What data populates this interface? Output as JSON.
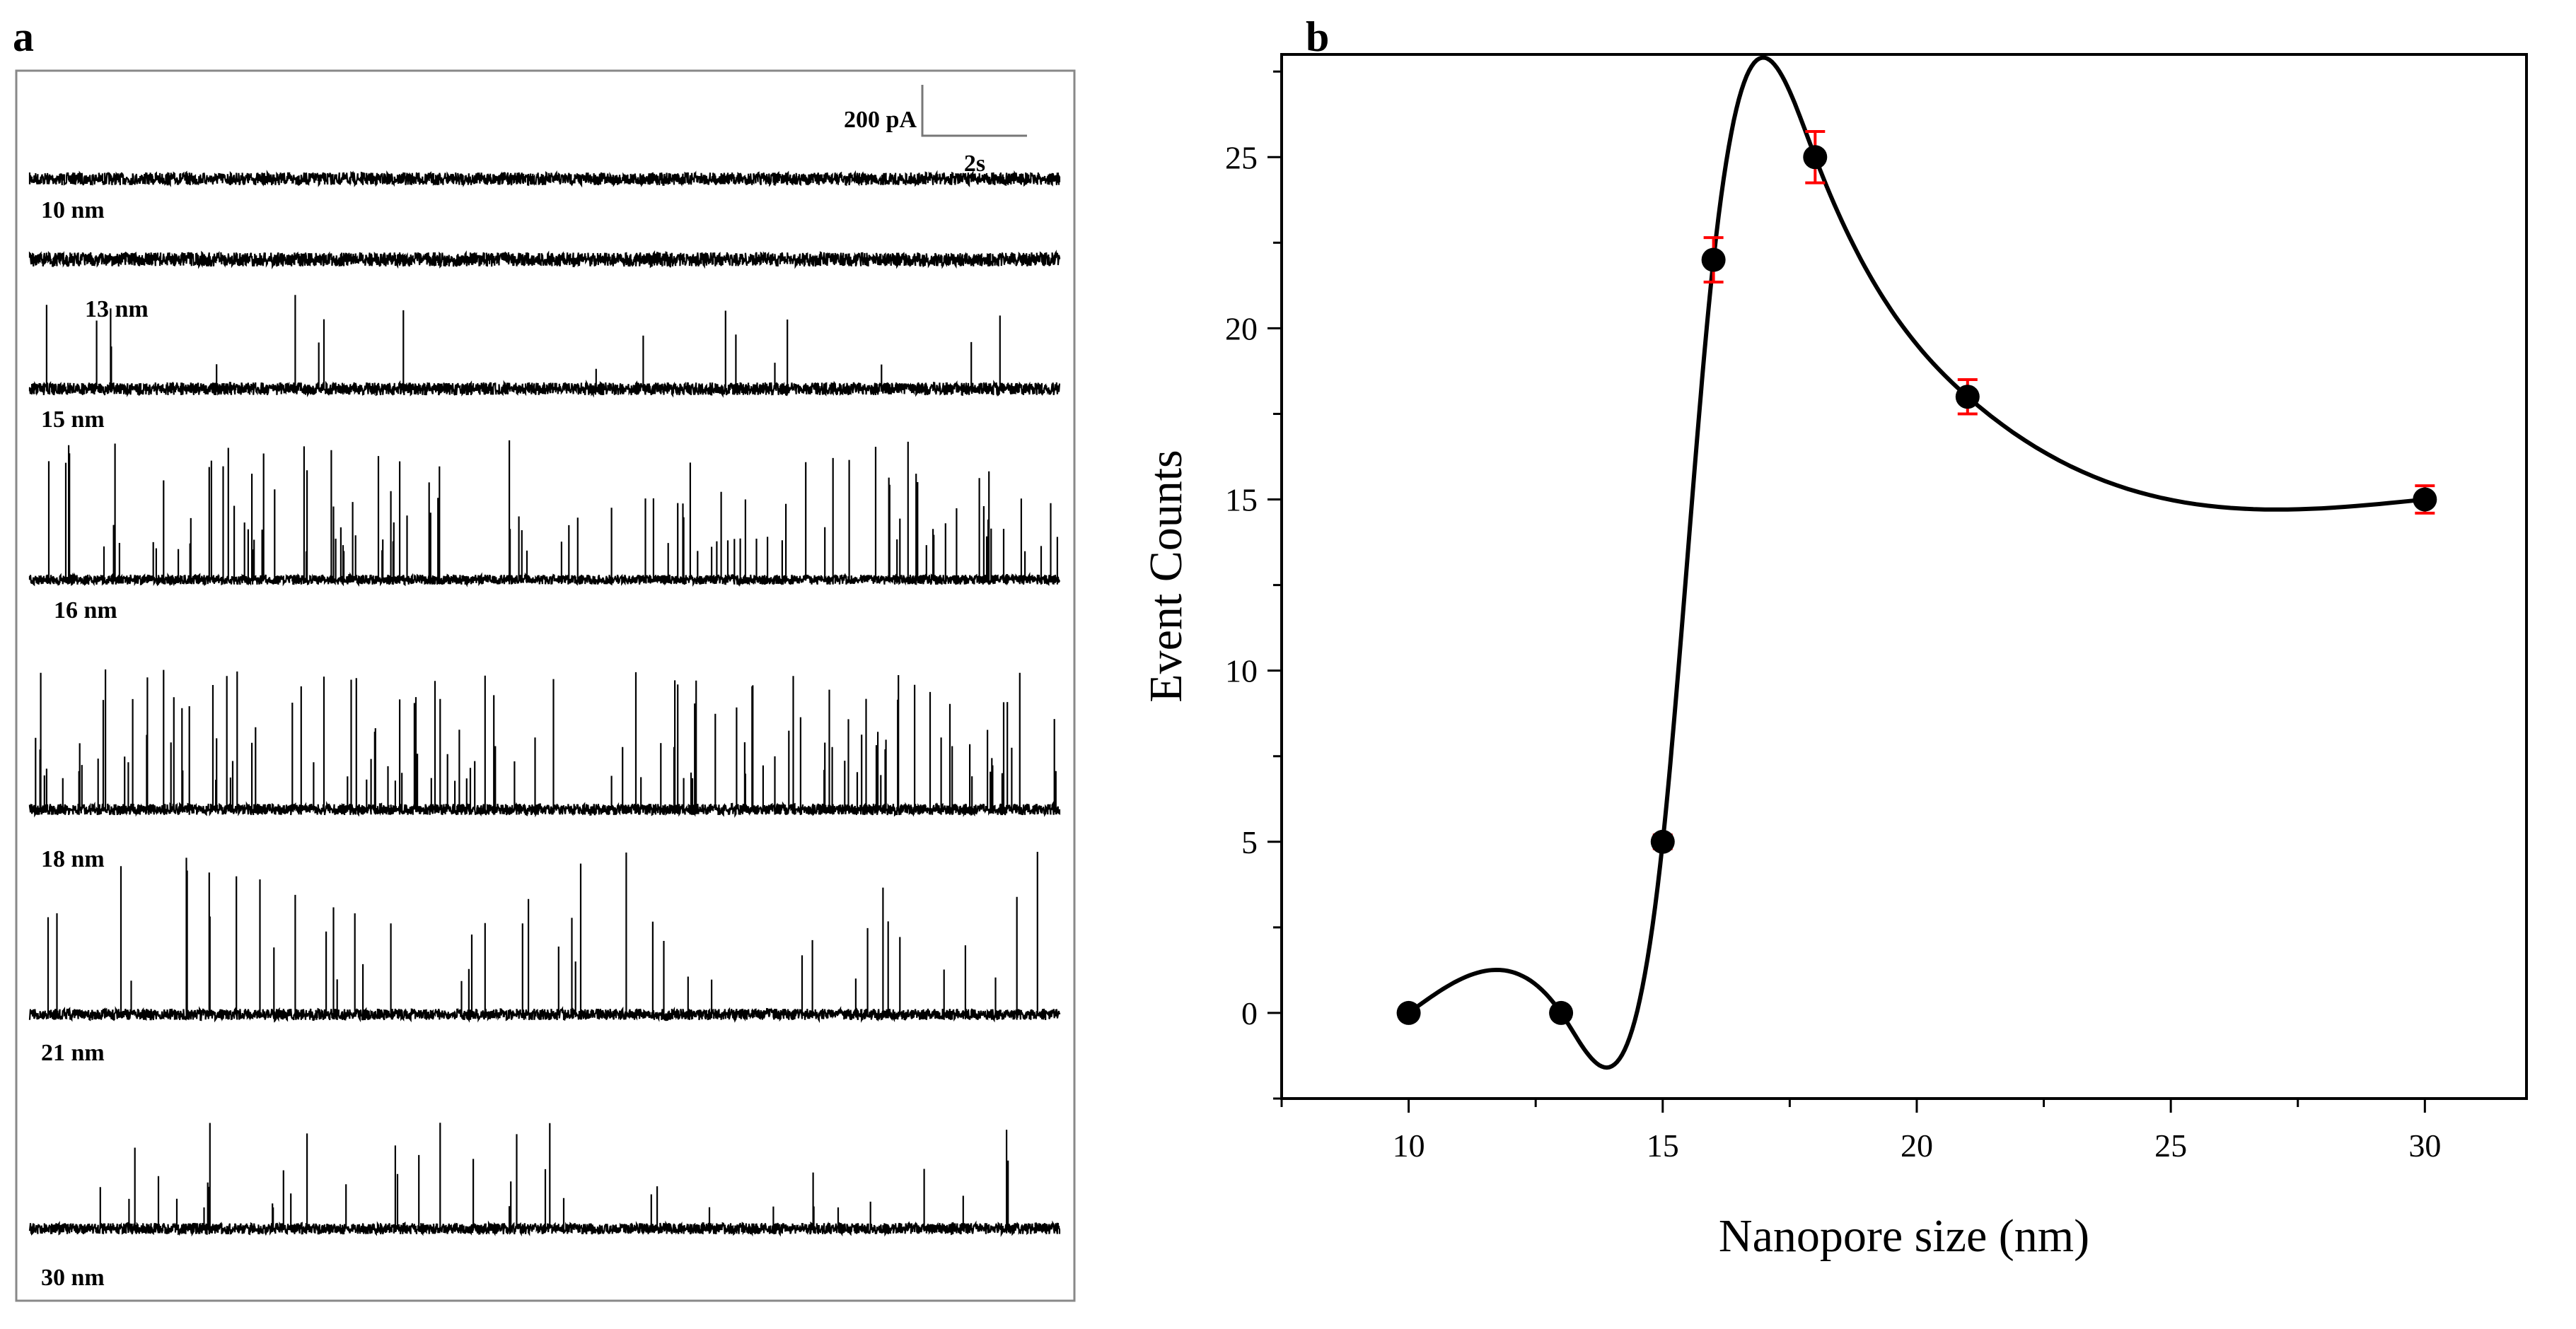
{
  "panel_a": {
    "letter": "a",
    "scale_bar": {
      "current_label": "200 pA",
      "time_label": "2s"
    },
    "traces": [
      {
        "label": "10 nm"
      },
      {
        "label": "13 nm"
      },
      {
        "label": "15 nm"
      },
      {
        "label": "16 nm"
      },
      {
        "label": "18 nm"
      },
      {
        "label": "21 nm"
      },
      {
        "label": "30 nm"
      }
    ]
  },
  "panel_b": {
    "letter": "b"
  },
  "chart_data": {
    "type": "line",
    "title": "",
    "xlabel": "Nanopore size (nm)",
    "ylabel": "Event Counts",
    "xlim": [
      7.5,
      32
    ],
    "ylim": [
      -2.5,
      28
    ],
    "xticks": [
      10,
      15,
      20,
      25,
      30
    ],
    "yticks": [
      0,
      5,
      10,
      15,
      20,
      25
    ],
    "grid": false,
    "smooth_spline": true,
    "colors": {
      "points": "#000000",
      "line": "#000000",
      "error_bars": "#ff0000"
    },
    "series": [
      {
        "x": [
          10,
          13,
          15,
          16,
          18,
          21,
          30
        ],
        "y": [
          0,
          0,
          5,
          22,
          25,
          18,
          15
        ],
        "error": [
          0,
          0,
          0.2,
          0.65,
          0.75,
          0.5,
          0.4
        ]
      }
    ]
  }
}
